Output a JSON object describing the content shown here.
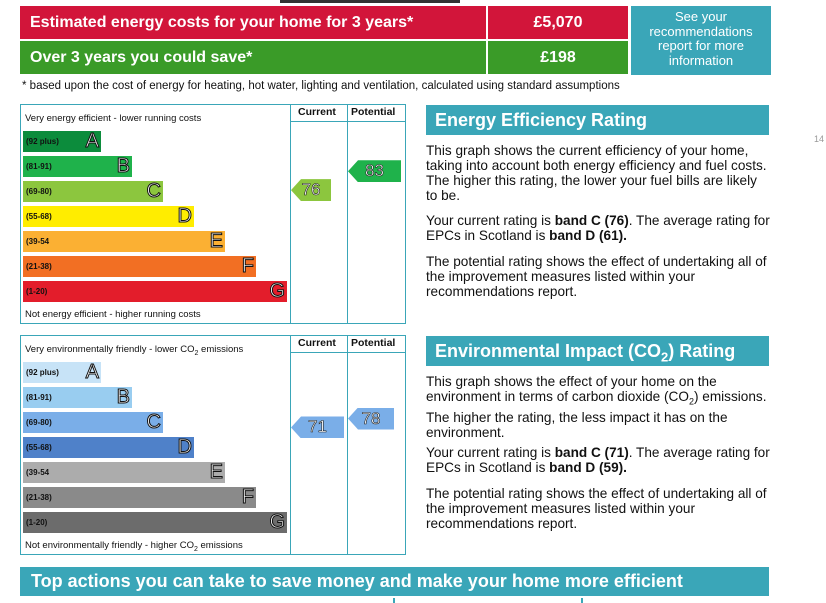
{
  "costs": {
    "estimated_label": "Estimated energy costs for your home for 3 years*",
    "estimated_value": "£5,070",
    "save_label": "Over 3 years you could save*",
    "save_value": "£198",
    "see_link": "See your recommendations report for more information",
    "footnote": "* based upon the cost of energy for heating, hot water, lighting and ventilation, calculated using standard assumptions"
  },
  "columns": {
    "current": "Current",
    "potential": "Potential"
  },
  "energy": {
    "top_note": "Very energy efficient - lower running costs",
    "bottom_note": "Not energy efficient - higher running costs",
    "bands": [
      {
        "range": "(92 plus)",
        "letter": "A",
        "color": "#0c8c3c"
      },
      {
        "range": "(81-91)",
        "letter": "B",
        "color": "#1fb24b"
      },
      {
        "range": "(69-80)",
        "letter": "C",
        "color": "#8cc63e"
      },
      {
        "range": "(55-68)",
        "letter": "D",
        "color": "#ffed00"
      },
      {
        "range": "(39-54",
        "letter": "E",
        "color": "#fbb033"
      },
      {
        "range": "(21-38)",
        "letter": "F",
        "color": "#f26f23"
      },
      {
        "range": "(1-20)",
        "letter": "G",
        "color": "#e31d2b"
      }
    ],
    "current": "76",
    "potential": "83",
    "current_color": "#8cc63e",
    "potential_color": "#1fb24b",
    "heading": "Energy Efficiency Rating",
    "p1": "This graph shows the current efficiency of your home, taking into account both energy efficiency and fuel costs. The higher this rating, the lower your fuel bills are likely to be.",
    "p2_pre": "Your current rating is ",
    "p2_b1": "band C (76)",
    "p2_mid": ". The average rating for EPCs in Scotland is ",
    "p2_b2": "band D (61).",
    "p3": "The potential rating shows the effect of undertaking all of the improvement measures listed within your recommendations report."
  },
  "env": {
    "top_note_pre": "Very environmentally friendly - lower CO",
    "top_note_sub": "2",
    "top_note_post": " emissions",
    "bottom_note_pre": "Not environmentally friendly - higher CO",
    "bottom_note_sub": "2",
    "bottom_note_post": " emissions",
    "bands": [
      {
        "range": "(92 plus)",
        "letter": "A",
        "color": "#c7e3f7"
      },
      {
        "range": "(81-91)",
        "letter": "B",
        "color": "#99cdf0"
      },
      {
        "range": "(69-80)",
        "letter": "C",
        "color": "#7aaee8"
      },
      {
        "range": "(55-68)",
        "letter": "D",
        "color": "#4f81c9"
      },
      {
        "range": "(39-54",
        "letter": "E",
        "color": "#acacac"
      },
      {
        "range": "(21-38)",
        "letter": "F",
        "color": "#8a8a8a"
      },
      {
        "range": "(1-20)",
        "letter": "G",
        "color": "#6c6c6c"
      }
    ],
    "current": "71",
    "potential": "78",
    "current_color": "#7aaee8",
    "potential_color": "#7aaee8",
    "heading_pre": "Environmental Impact (CO",
    "heading_sub": "2",
    "heading_post": ") Rating",
    "p1_pre": "This graph shows the effect of your home on the environment in terms of carbon dioxide (CO",
    "p1_sub": "2",
    "p1_post": ") emissions. The higher the rating, the less impact it has on the environment.",
    "p2_pre": "Your current rating is ",
    "p2_b1": "band C (71)",
    "p2_mid": ". The average rating for EPCs in Scotland is ",
    "p2_b2": "band D (59).",
    "p3": "The potential rating shows the effect of undertaking all of the improvement measures listed within your recommendations report."
  },
  "actions_heading": "Top actions you can take to save money and make your home more efficient",
  "scroll_marker": "14"
}
